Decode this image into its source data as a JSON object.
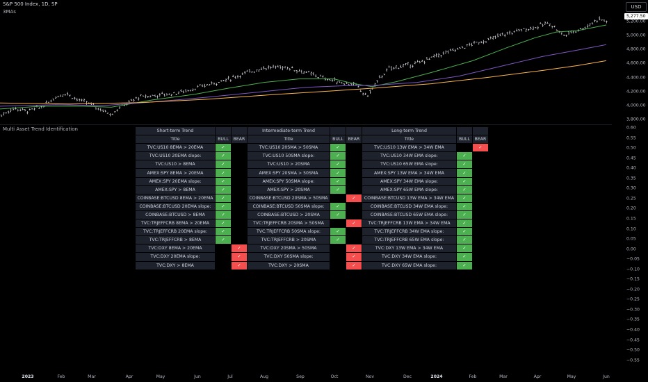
{
  "header": {
    "title": "S&P 500 Index, 1D, SP",
    "indicator": "3MAs"
  },
  "subpane": {
    "label": "Multi Asset Trend Identification"
  },
  "currency_button": "USD",
  "price_tag": "5,277.50",
  "price_axis": [
    "5,200.00",
    "5,000.00",
    "4,800.00",
    "4,600.00",
    "4,400.00",
    "4,200.00",
    "4,000.00",
    "3,800.00"
  ],
  "sub_axis": [
    "0.60",
    "0.55",
    "0.50",
    "0.45",
    "0.40",
    "0.35",
    "0.30",
    "0.25",
    "0.20",
    "0.15",
    "0.10",
    "0.05",
    "0.00",
    "−0.05",
    "−0.10",
    "−0.15",
    "−0.20",
    "−0.25",
    "−0.30",
    "−0.35",
    "−0.40",
    "−0.45",
    "−0.50",
    "−0.55"
  ],
  "time_axis": [
    "2023",
    "Feb",
    "Mar",
    "Apr",
    "May",
    "Jun",
    "Jul",
    "Aug",
    "Sep",
    "Oct",
    "Nov",
    "Dec",
    "2024",
    "Feb",
    "Mar",
    "Apr",
    "May",
    "Jun"
  ],
  "colors": {
    "ma_fast": "#4caf50",
    "ma_mid": "#7e57c2",
    "ma_slow": "#ffb74d",
    "bull": "#4caf50",
    "bear": "#f44e4e"
  },
  "table": {
    "group_headers": [
      "Short-term Trend",
      "Intermediate-term Trend",
      "Long-term Trend"
    ],
    "col_title": "Title",
    "col_bull": "BULL",
    "col_bear": "BEAR",
    "check": "✓",
    "rows": [
      {
        "s": "TVC:US10 8EMA > 20EMA",
        "ss": "bull",
        "m": "TVC:US10 20SMA > 50SMA",
        "ms": "bull",
        "l": "TVC:US10 13W EMA > 34W EMA",
        "ls": "bear"
      },
      {
        "s": "TVC:US10 20EMA slope:",
        "ss": "bull",
        "m": "TVC:US10 50SMA slope:",
        "ms": "bull",
        "l": "TVC:US10 34W EMA slope:",
        "ls": "bull"
      },
      {
        "s": "TVC:US10 > 8EMA",
        "ss": "bull",
        "m": "TVC:US10 > 20SMA",
        "ms": "bull",
        "l": "TVC:US10 65W EMA slope:",
        "ls": "bull"
      },
      {
        "s": "AMEX:SPY 8EMA > 20EMA",
        "ss": "bull",
        "m": "AMEX:SPY 20SMA > 50SMA",
        "ms": "bull",
        "l": "AMEX:SPY 13W EMA > 34W EMA",
        "ls": "bull"
      },
      {
        "s": "AMEX:SPY 20EMA slope:",
        "ss": "bull",
        "m": "AMEX:SPY 50SMA slope:",
        "ms": "bull",
        "l": "AMEX:SPY 34W EMA slope:",
        "ls": "bull"
      },
      {
        "s": "AMEX:SPY > 8EMA",
        "ss": "bull",
        "m": "AMEX:SPY > 20SMA",
        "ms": "bull",
        "l": "AMEX:SPY 65W EMA slope:",
        "ls": "bull"
      },
      {
        "s": "COINBASE:BTCUSD 8EMA > 20EMA",
        "ss": "bull",
        "m": "COINBASE:BTCUSD 20SMA > 50SMA",
        "ms": "bear",
        "l": "COINBASE:BTCUSD 13W EMA > 34W EMA",
        "ls": "bull"
      },
      {
        "s": "COINBASE:BTCUSD 20EMA slope:",
        "ss": "bull",
        "m": "COINBASE:BTCUSD 50SMA slope:",
        "ms": "bull",
        "l": "COINBASE:BTCUSD 34W EMA slope:",
        "ls": "bull"
      },
      {
        "s": "COINBASE:BTCUSD > 8EMA",
        "ss": "bull",
        "m": "COINBASE:BTCUSD > 20SMA",
        "ms": "bull",
        "l": "COINBASE:BTCUSD 65W EMA slope:",
        "ls": "bull"
      },
      {
        "s": "TVC:TRJEFFCRB 8EMA > 20EMA",
        "ss": "bull",
        "m": "TVC:TRJEFFCRB 20SMA > 50SMA",
        "ms": "bear",
        "l": "TVC:TRJEFFCRB 13W EMA > 34W EMA",
        "ls": "bull"
      },
      {
        "s": "TVC:TRJEFFCRB 20EMA slope:",
        "ss": "bull",
        "m": "TVC:TRJEFFCRB 50SMA slope:",
        "ms": "bull",
        "l": "TVC:TRJEFFCRB 34W EMA slope:",
        "ls": "bull"
      },
      {
        "s": "TVC:TRJEFFCRB > 8EMA",
        "ss": "bull",
        "m": "TVC:TRJEFFCRB > 20SMA",
        "ms": "bull",
        "l": "TVC:TRJEFFCRB 65W EMA slope:",
        "ls": "bull"
      },
      {
        "s": "TVC:DXY 8EMA > 20EMA",
        "ss": "bear",
        "m": "TVC:DXY 20SMA > 50SMA",
        "ms": "bear",
        "l": "TVC:DXY 13W EMA > 34W EMA",
        "ls": "bull"
      },
      {
        "s": "TVC:DXY 20EMA slope:",
        "ss": "bear",
        "m": "TVC:DXY 50SMA slope:",
        "ms": "bear",
        "l": "TVC:DXY 34W EMA slope:",
        "ls": "bull"
      },
      {
        "s": "TVC:DXY > 8EMA",
        "ss": "bear",
        "m": "TVC:DXY > 20SMA",
        "ms": "bear",
        "l": "TVC:DXY 65W EMA slope:",
        "ls": "bull"
      }
    ]
  }
}
